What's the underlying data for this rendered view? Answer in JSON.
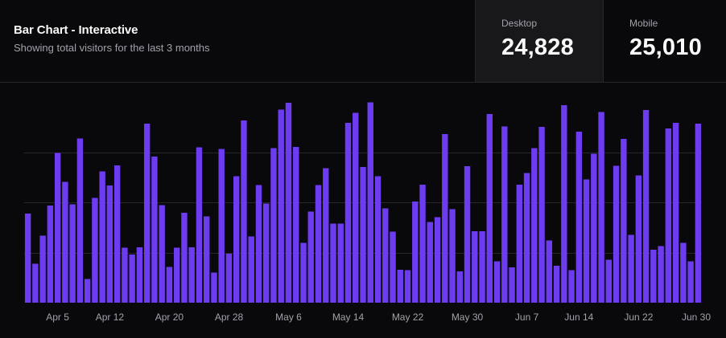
{
  "header": {
    "title": "Bar Chart - Interactive",
    "subtitle": "Showing total visitors for the last 3 months"
  },
  "stats": {
    "desktop": {
      "label": "Desktop",
      "value": "24,828"
    },
    "mobile": {
      "label": "Mobile",
      "value": "25,010"
    }
  },
  "colors": {
    "bar": "#6d3cf0",
    "grid": "#27272a",
    "background": "#09090b"
  },
  "chart_data": {
    "type": "bar",
    "active_series": "Desktop",
    "ylim": [
      0,
      500
    ],
    "grid": "horizontal",
    "xlabel": "",
    "ylabel": "",
    "tick_labels": [
      "Apr 5",
      "Apr 12",
      "Apr 20",
      "Apr 28",
      "May 6",
      "May 14",
      "May 22",
      "May 30",
      "Jun 7",
      "Jun 14",
      "Jun 22",
      "Jun 30"
    ],
    "tick_indices": [
      4,
      11,
      19,
      27,
      35,
      43,
      51,
      59,
      67,
      74,
      82,
      90
    ],
    "categories": [
      "Apr 1",
      "Apr 2",
      "Apr 3",
      "Apr 4",
      "Apr 5",
      "Apr 6",
      "Apr 7",
      "Apr 8",
      "Apr 9",
      "Apr 10",
      "Apr 11",
      "Apr 12",
      "Apr 13",
      "Apr 14",
      "Apr 15",
      "Apr 16",
      "Apr 17",
      "Apr 18",
      "Apr 19",
      "Apr 20",
      "Apr 21",
      "Apr 22",
      "Apr 23",
      "Apr 24",
      "Apr 25",
      "Apr 26",
      "Apr 27",
      "Apr 28",
      "Apr 29",
      "Apr 30",
      "May 1",
      "May 2",
      "May 3",
      "May 4",
      "May 5",
      "May 6",
      "May 7",
      "May 8",
      "May 9",
      "May 10",
      "May 11",
      "May 12",
      "May 13",
      "May 14",
      "May 15",
      "May 16",
      "May 17",
      "May 18",
      "May 19",
      "May 20",
      "May 21",
      "May 22",
      "May 23",
      "May 24",
      "May 25",
      "May 26",
      "May 27",
      "May 28",
      "May 29",
      "May 30",
      "May 31",
      "Jun 1",
      "Jun 2",
      "Jun 3",
      "Jun 4",
      "Jun 5",
      "Jun 6",
      "Jun 7",
      "Jun 8",
      "Jun 9",
      "Jun 10",
      "Jun 11",
      "Jun 12",
      "Jun 13",
      "Jun 14",
      "Jun 15",
      "Jun 16",
      "Jun 17",
      "Jun 18",
      "Jun 19",
      "Jun 20",
      "Jun 21",
      "Jun 22",
      "Jun 23",
      "Jun 24",
      "Jun 25",
      "Jun 26",
      "Jun 27",
      "Jun 28",
      "Jun 29",
      "Jun 30"
    ],
    "values": [
      222,
      97,
      167,
      242,
      373,
      301,
      245,
      409,
      59,
      261,
      327,
      292,
      342,
      137,
      120,
      138,
      446,
      364,
      243,
      89,
      137,
      224,
      138,
      387,
      215,
      75,
      383,
      122,
      315,
      454,
      165,
      293,
      247,
      385,
      481,
      498,
      388,
      149,
      227,
      293,
      335,
      197,
      197,
      448,
      473,
      338,
      499,
      315,
      235,
      177,
      82,
      81,
      252,
      294,
      201,
      213,
      420,
      233,
      78,
      340,
      178,
      178,
      470,
      103,
      439,
      88,
      294,
      323,
      385,
      438,
      155,
      92,
      492,
      81,
      426,
      307,
      371,
      475,
      107,
      341,
      408,
      169,
      317,
      480,
      132,
      141,
      434,
      448,
      149,
      103,
      446
    ]
  }
}
